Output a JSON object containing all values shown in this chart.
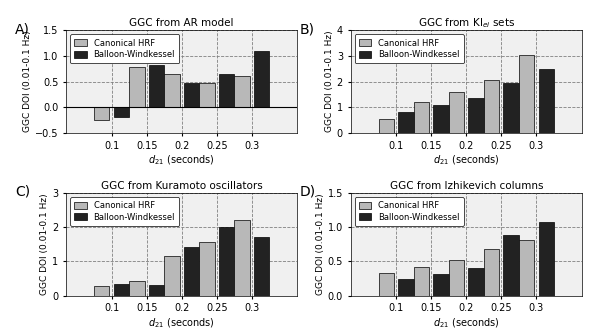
{
  "panels": [
    {
      "label": "A)",
      "title": "GGC from AR model",
      "categories": [
        0.1,
        0.15,
        0.2,
        0.25,
        0.3
      ],
      "canonical": [
        -0.25,
        0.78,
        0.65,
        0.48,
        0.6
      ],
      "balloon": [
        -0.18,
        0.82,
        0.48,
        0.65,
        1.1
      ],
      "ylim": [
        -0.5,
        1.5
      ],
      "yticks": [
        -0.5,
        0.0,
        0.5,
        1.0,
        1.5
      ]
    },
    {
      "label": "B)",
      "title": "GGC from KI$_{ei}$ sets",
      "categories": [
        0.1,
        0.15,
        0.2,
        0.25,
        0.3
      ],
      "canonical": [
        0.55,
        1.2,
        1.6,
        2.05,
        3.03
      ],
      "balloon": [
        0.82,
        1.08,
        1.35,
        1.93,
        2.5
      ],
      "ylim": [
        0,
        4
      ],
      "yticks": [
        0,
        1,
        2,
        3,
        4
      ]
    },
    {
      "label": "C)",
      "title": "GGC from Kuramoto oscillators",
      "categories": [
        0.1,
        0.15,
        0.2,
        0.25,
        0.3
      ],
      "canonical": [
        0.27,
        0.42,
        1.15,
        1.58,
        2.22
      ],
      "balloon": [
        0.35,
        0.32,
        1.42,
        2.0,
        1.7
      ],
      "ylim": [
        0,
        3
      ],
      "yticks": [
        0,
        1,
        2,
        3
      ]
    },
    {
      "label": "D)",
      "title": "GGC from Izhikevich columns",
      "categories": [
        0.1,
        0.15,
        0.2,
        0.25,
        0.3
      ],
      "canonical": [
        0.33,
        0.42,
        0.52,
        0.68,
        0.82
      ],
      "balloon": [
        0.25,
        0.32,
        0.4,
        0.88,
        1.07
      ],
      "ylim": [
        0,
        1.5
      ],
      "yticks": [
        0.0,
        0.5,
        1.0,
        1.5
      ]
    }
  ],
  "color_canonical": "#b8b8b8",
  "color_balloon": "#222222",
  "bar_width": 0.022,
  "bar_gap": 0.003
}
